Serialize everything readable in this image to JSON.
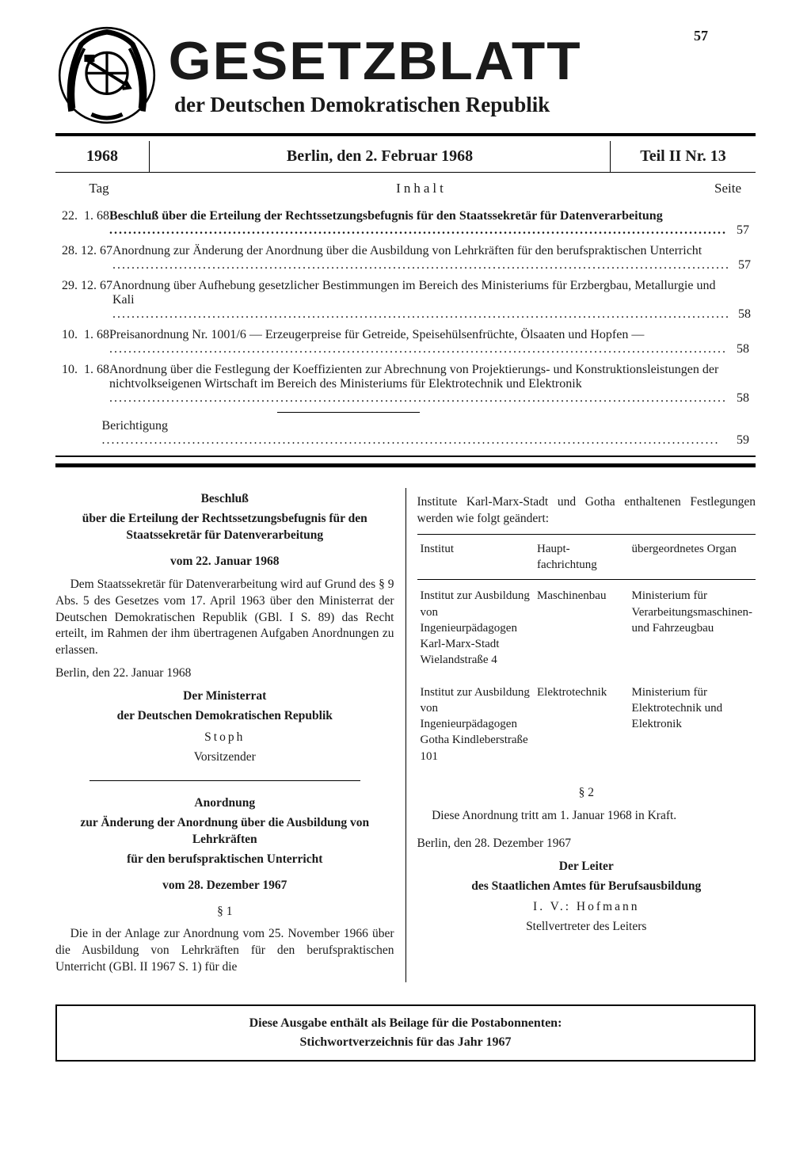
{
  "page_number_top": "57",
  "masthead": {
    "title": "GESETZBLATT",
    "subtitle": "der Deutschen Demokratischen Republik"
  },
  "header_bar": {
    "year": "1968",
    "place_date": "Berlin, den 2. Februar 1968",
    "issue": "Teil II  Nr. 13"
  },
  "toc_headings": {
    "day": "Tag",
    "content": "Inhalt",
    "page": "Seite"
  },
  "toc": [
    {
      "date": "22.  1. 68",
      "text": "Beschluß über die Erteilung der Rechtssetzungsbefugnis für den Staatssekretär für Datenverarbeitung",
      "bold": true,
      "page": "57"
    },
    {
      "date": "28. 12. 67",
      "text": "Anordnung zur Änderung der Anordnung über die Ausbildung von Lehrkräften für den berufspraktischen Unterricht",
      "bold": false,
      "page": "57"
    },
    {
      "date": "29. 12. 67",
      "text": "Anordnung über Aufhebung gesetzlicher Bestimmungen im Bereich des Ministeriums für Erzbergbau, Metallurgie und Kali",
      "bold": false,
      "page": "58"
    },
    {
      "date": "10.  1. 68",
      "text": "Preisanordnung Nr. 1001/6 — Erzeugerpreise für Getreide, Speisehülsenfrüchte, Ölsaaten und Hopfen —",
      "bold": false,
      "page": "58"
    },
    {
      "date": "10.  1. 68",
      "text": "Anordnung über die Festlegung der Koeffizienten zur Abrechnung von Projektierungs- und Konstruktionsleistungen der nichtvolkseigenen Wirtschaft im Bereich des Ministeriums für Elektrotechnik und Elektronik",
      "bold": false,
      "page": "58"
    },
    {
      "date": "",
      "text": "Berichtigung",
      "bold": false,
      "page": "59",
      "after_divider": true
    }
  ],
  "left_col": {
    "h1": "Beschluß",
    "h2": "über die Erteilung der Rechtssetzungsbefugnis für den Staatssekretär für Datenverarbeitung",
    "date": "vom 22. Januar 1968",
    "body": "Dem Staatssekretär für Datenverarbeitung wird auf Grund des § 9 Abs. 5 des Gesetzes vom 17. April 1963 über den Ministerrat der Deutschen Demokratischen Republik (GBl. I S. 89) das Recht erteilt, im Rahmen der ihm übertragenen Aufgaben Anordnungen zu erlassen.",
    "place_date": "Berlin, den 22. Januar 1968",
    "sig1": "Der Ministerrat",
    "sig2": "der Deutschen Demokratischen Republik",
    "sig_name": "Stoph",
    "sig_role": "Vorsitzender",
    "h3": "Anordnung",
    "h4": "zur Änderung der Anordnung über die Ausbildung von Lehrkräften",
    "h5": "für den berufspraktischen Unterricht",
    "date2": "vom 28. Dezember 1967",
    "sec1": "§ 1",
    "body2": "Die in der Anlage zur Anordnung vom 25. November 1966 über die Ausbildung von Lehrkräften für den berufspraktischen Unterricht (GBl. II 1967 S. 1) für die"
  },
  "right_col": {
    "lead": "Institute Karl-Marx-Stadt und Gotha enthaltenen Festlegungen werden wie folgt geändert:",
    "table": {
      "h1": "Institut",
      "h2": "Haupt-\nfachrichtung",
      "h3": "übergeordnetes Organ",
      "rows": [
        {
          "c1": "Institut zur Ausbildung von Ingenieurpädagogen Karl-Marx-Stadt Wielandstraße 4",
          "c2": "Maschinenbau",
          "c3": "Ministerium für Verarbeitungsmaschinen- und Fahrzeugbau"
        },
        {
          "c1": "Institut zur Ausbildung von Ingenieurpädagogen Gotha Kindleberstraße 101",
          "c2": "Elektrotechnik",
          "c3": "Ministerium für Elektrotechnik und Elektronik"
        }
      ]
    },
    "sec2": "§ 2",
    "body3": "Diese Anordnung tritt am 1. Januar 1968 in Kraft.",
    "place_date2": "Berlin, den 28. Dezember 1967",
    "sig3": "Der Leiter",
    "sig4": "des Staatlichen Amtes für Berufsausbildung",
    "sig_name2": "I. V.: Hofmann",
    "sig_role2": "Stellvertreter des Leiters"
  },
  "footer": {
    "line1": "Diese Ausgabe enthält als Beilage für die Postabonnenten:",
    "line2": "Stichwortverzeichnis für das Jahr 1967"
  },
  "colors": {
    "text": "#1a1a1a",
    "bg": "#ffffff",
    "rule": "#000000"
  }
}
